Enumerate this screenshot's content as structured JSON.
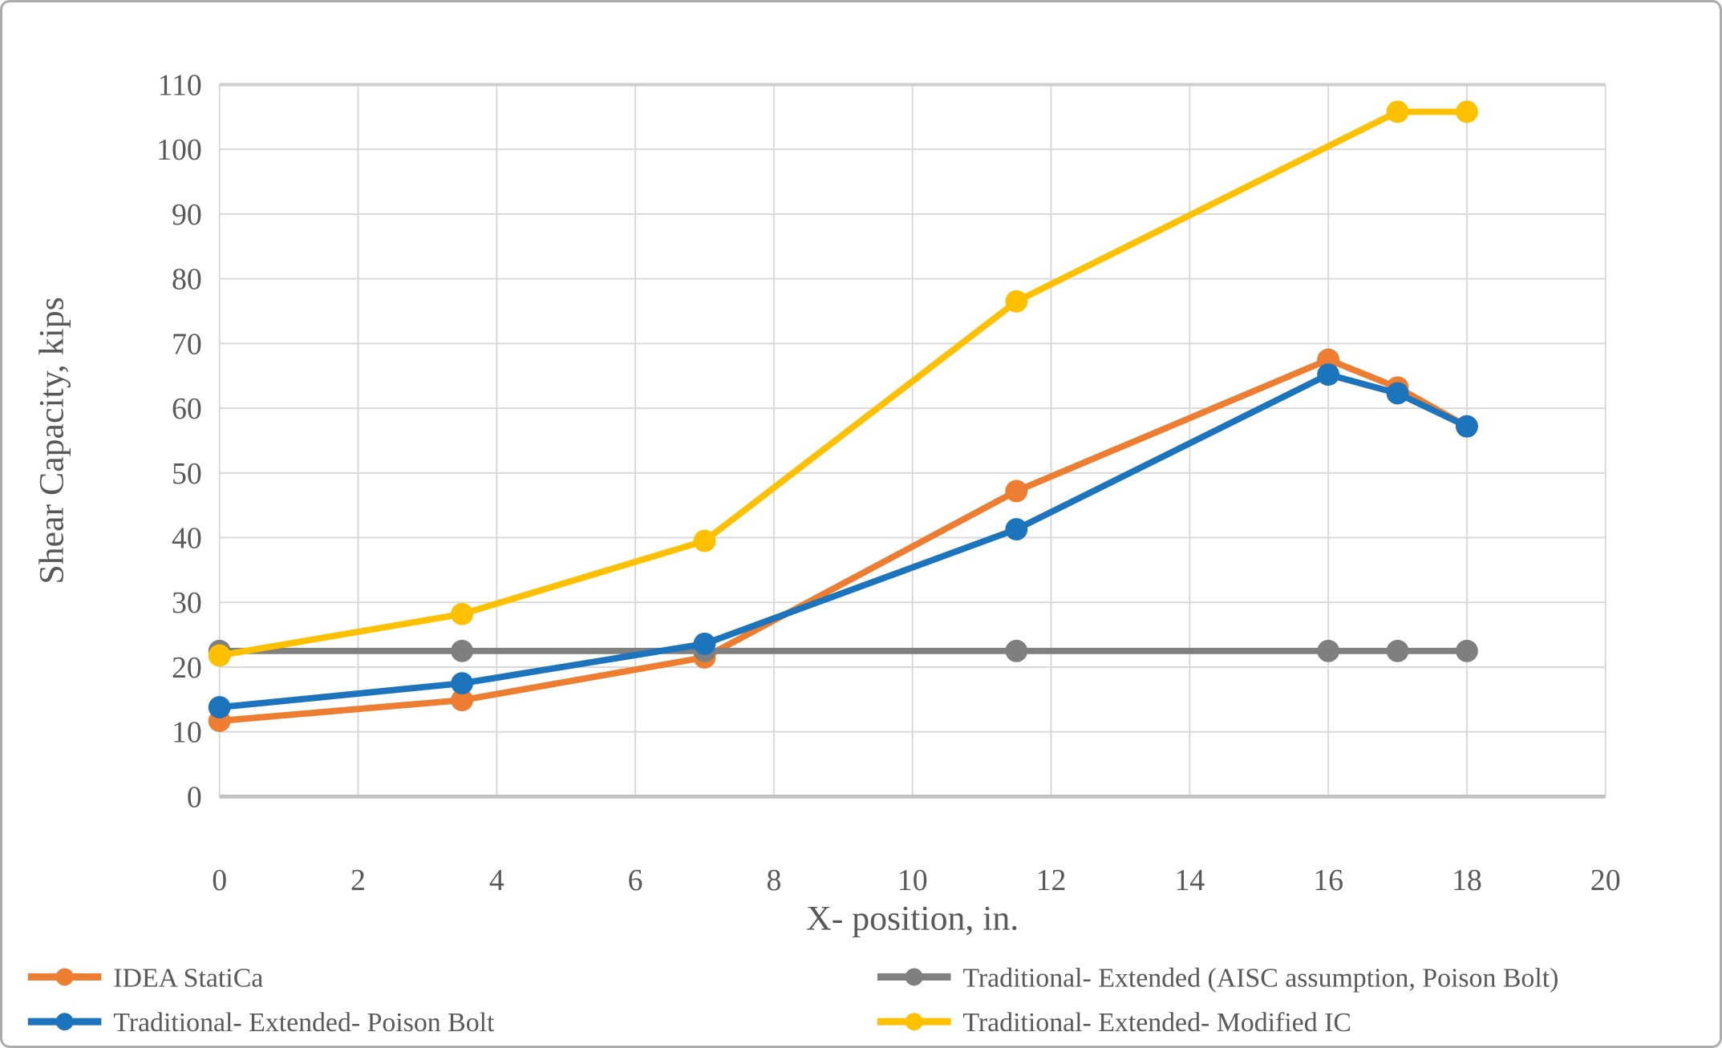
{
  "chart_data": {
    "type": "line",
    "title": "",
    "xlabel": "X- position, in.",
    "ylabel": "Shear Capacity, kips",
    "xlim": [
      0,
      20
    ],
    "ylim": [
      0,
      110
    ],
    "x_ticks": [
      0,
      2,
      4,
      6,
      8,
      10,
      12,
      14,
      16,
      18,
      20
    ],
    "y_ticks": [
      0,
      10,
      20,
      30,
      40,
      50,
      60,
      70,
      80,
      90,
      100,
      110
    ],
    "grid": true,
    "legend_position": "bottom-two-columns",
    "marker": "circle",
    "series": [
      {
        "name": "IDEA StatiCa",
        "color": "#ED7D31",
        "x": [
          0,
          3.5,
          7,
          11.5,
          16,
          17,
          18
        ],
        "y": [
          11.7,
          14.9,
          21.5,
          47.2,
          67.5,
          63.2,
          57.2
        ]
      },
      {
        "name": "Traditional- Extended (AISC assumption, Poison Bolt)",
        "color": "#7F7F7F",
        "x": [
          0,
          3.5,
          7,
          11.5,
          16,
          17,
          18
        ],
        "y": [
          22.5,
          22.5,
          22.5,
          22.5,
          22.5,
          22.5,
          22.5
        ]
      },
      {
        "name": "Traditional- Extended- Poison Bolt",
        "color": "#1B74BC",
        "x": [
          0,
          3.5,
          7,
          11.5,
          16,
          17,
          18
        ],
        "y": [
          13.8,
          17.5,
          23.6,
          41.3,
          65.2,
          62.3,
          57.2
        ]
      },
      {
        "name": "Traditional- Extended- Modified IC",
        "color": "#FFC000",
        "x": [
          0,
          3.5,
          7,
          11.5,
          17,
          18
        ],
        "y": [
          21.8,
          28.2,
          39.5,
          76.5,
          105.8,
          105.8
        ]
      }
    ]
  },
  "colors": {
    "background": "#FFFFFF",
    "outer_border": "#ABABAB",
    "grid": "#D9D9D9",
    "plot_top_border": "#CDCDCD",
    "axis_line": "#C3C3C3",
    "text": "#595959"
  }
}
